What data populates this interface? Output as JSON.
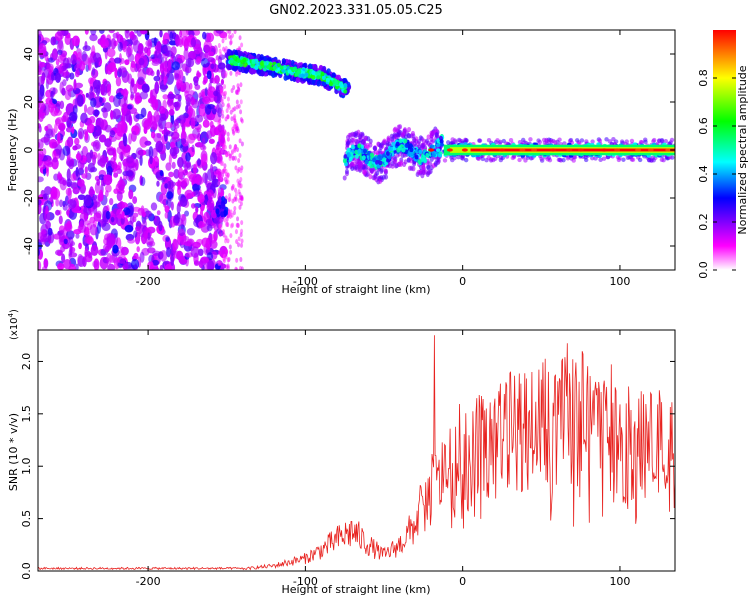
{
  "chart_data": [
    {
      "type": "heatmap",
      "title": "GN02.2023.331.05.05.C25",
      "xlabel": "Height of straight line (km)",
      "ylabel": "Frequency (Hz)",
      "xlim": [
        -270,
        135
      ],
      "ylim": [
        -50,
        50
      ],
      "xticks": [
        -200,
        -100,
        0,
        100
      ],
      "yticks": [
        -40,
        -20,
        0,
        20,
        40
      ],
      "colorbar": {
        "label": "Normalized spectral amplitude",
        "range": [
          0,
          1
        ],
        "ticks": [
          "0.0",
          "0.2",
          "0.4",
          "0.6",
          "0.8"
        ],
        "colors": [
          "#ffffff",
          "#ff00ff",
          "#0000ff",
          "#00ffff",
          "#00ff00",
          "#ffff00",
          "#ff0000"
        ]
      },
      "features": [
        {
          "x_range": [
            -270,
            -145
          ],
          "freq_range": [
            -50,
            50
          ],
          "amplitude": 0.25
        },
        {
          "x_range": [
            -150,
            -72
          ],
          "freq_center": [
            37,
            28
          ],
          "amplitude": 0.45
        },
        {
          "x_range": [
            -75,
            -15
          ],
          "freq_center": [
            -5,
            1
          ],
          "amplitude": 0.35
        },
        {
          "x_range": [
            -15,
            135
          ],
          "freq_center": [
            0,
            0
          ],
          "amplitude": 1.0
        }
      ]
    },
    {
      "type": "line",
      "xlabel": "Height of straight line (km)",
      "ylabel": "SNR (10 * v/v)",
      "yunit_multiplier": "(x10",
      "yunit_exponent": "4",
      "yunit_close": ")",
      "xlim": [
        -270,
        135
      ],
      "ylim": [
        0,
        2.3
      ],
      "xticks": [
        -200,
        -100,
        0,
        100
      ],
      "yticks": [
        "0.0",
        "0.5",
        "1.0",
        "1.5",
        "2.0"
      ],
      "color": "#e8221f",
      "envelope": {
        "x": [
          -270,
          -140,
          -120,
          -100,
          -90,
          -80,
          -70,
          -60,
          -50,
          -40,
          -35,
          -30,
          -25,
          -20,
          -15,
          -10,
          0,
          10,
          20,
          30,
          40,
          50,
          60,
          70,
          80,
          90,
          100,
          110,
          120,
          135
        ],
        "y": [
          0.0,
          0.02,
          0.05,
          0.12,
          0.2,
          0.3,
          0.38,
          0.25,
          0.15,
          0.25,
          0.35,
          0.45,
          0.6,
          0.75,
          0.85,
          0.95,
          1.05,
          1.15,
          1.25,
          1.32,
          1.38,
          1.42,
          1.42,
          1.4,
          1.35,
          1.3,
          1.25,
          1.2,
          1.2,
          1.22
        ]
      },
      "spike": {
        "x": -18,
        "y": 2.25
      }
    }
  ]
}
